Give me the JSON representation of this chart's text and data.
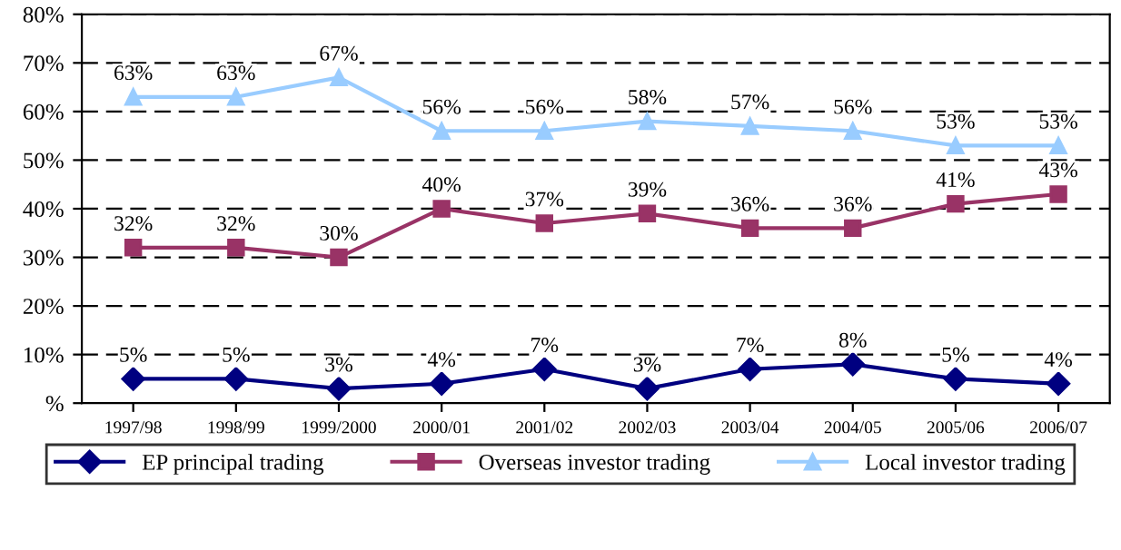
{
  "chart_data": {
    "type": "line",
    "categories": [
      "1997/98",
      "1998/99",
      "1999/2000",
      "2000/01",
      "2001/02",
      "2002/03",
      "2003/04",
      "2004/05",
      "2005/06",
      "2006/07"
    ],
    "series": [
      {
        "name": "EP principal trading",
        "color": "#000080",
        "marker": "diamond",
        "values": [
          5,
          5,
          3,
          4,
          7,
          3,
          7,
          8,
          5,
          4
        ],
        "value_labels": [
          "5%",
          "5%",
          "3%",
          "4%",
          "7%",
          "3%",
          "7%",
          "8%",
          "5%",
          "4%"
        ]
      },
      {
        "name": "Overseas investor trading",
        "color": "#993366",
        "marker": "square",
        "values": [
          32,
          32,
          30,
          40,
          37,
          39,
          36,
          36,
          41,
          43
        ],
        "value_labels": [
          "32%",
          "32%",
          "30%",
          "40%",
          "37%",
          "39%",
          "36%",
          "36%",
          "41%",
          "43%"
        ]
      },
      {
        "name": "Local investor trading",
        "color": "#99ccff",
        "marker": "triangle",
        "values": [
          63,
          63,
          67,
          56,
          56,
          58,
          57,
          56,
          53,
          53
        ],
        "value_labels": [
          "63%",
          "63%",
          "67%",
          "56%",
          "56%",
          "58%",
          "57%",
          "56%",
          "53%",
          "53%"
        ]
      }
    ],
    "ylim": [
      0,
      80
    ],
    "yticks": [
      {
        "value": 0,
        "label": "%"
      },
      {
        "value": 10,
        "label": "10%"
      },
      {
        "value": 20,
        "label": "20%"
      },
      {
        "value": 30,
        "label": "30%"
      },
      {
        "value": 40,
        "label": "40%"
      },
      {
        "value": 50,
        "label": "50%"
      },
      {
        "value": 60,
        "label": "60%"
      },
      {
        "value": 70,
        "label": "70%"
      },
      {
        "value": 80,
        "label": "80%"
      }
    ],
    "grid": "y",
    "legend": "bottom",
    "line_style": "solid"
  }
}
